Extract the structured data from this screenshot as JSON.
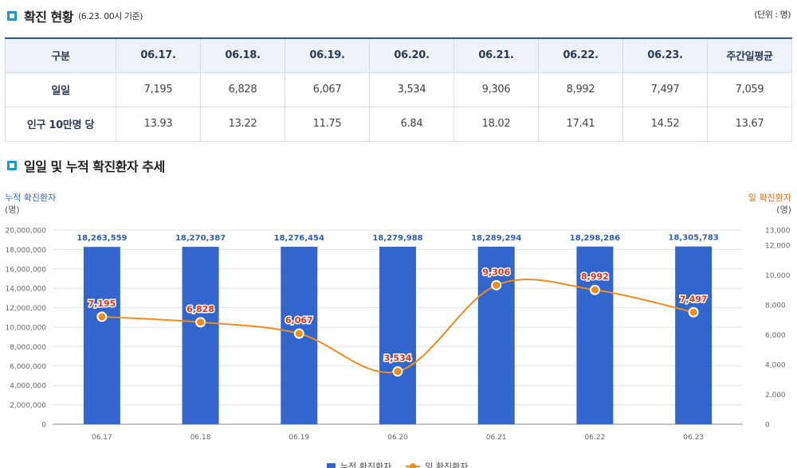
{
  "section1": {
    "title": "확진 현황",
    "subtitle": "(6.23. 00시 기준)",
    "unit": "(단위 : 명)"
  },
  "table": {
    "headers": [
      "구분",
      "06.17.",
      "06.18.",
      "06.19.",
      "06.20.",
      "06.21.",
      "06.22.",
      "06.23.",
      "주간일평균"
    ],
    "rows": [
      {
        "label": "일일",
        "values": [
          "7,195",
          "6,828",
          "6,067",
          "3,534",
          "9,306",
          "8,992",
          "7,497",
          "7,059"
        ]
      },
      {
        "label": "인구 10만명 당",
        "values": [
          "13.93",
          "13.22",
          "11.75",
          "6.84",
          "18.02",
          "17.41",
          "14.52",
          "13.67"
        ]
      }
    ]
  },
  "section2": {
    "title": "일일 및 누적 확진환자 추세"
  },
  "chart_data": {
    "type": "bar",
    "categories": [
      "06.17",
      "06.18",
      "06.19",
      "06.20",
      "06.21",
      "06.22",
      "06.23"
    ],
    "left_axis": {
      "label": "누적 확진환자",
      "unit": "(명)",
      "ylim": [
        0,
        20000000
      ],
      "ticks": [
        "0",
        "2,000,000",
        "4,000,000",
        "6,000,000",
        "8,000,000",
        "10,000,000",
        "12,000,000",
        "14,000,000",
        "16,000,000",
        "18,000,000",
        "20,000,000"
      ]
    },
    "right_axis": {
      "label": "일 확진환자",
      "unit": "(명)",
      "ylim": [
        0,
        13000
      ],
      "ticks": [
        "0",
        "2,000",
        "4,000",
        "6,000",
        "8,000",
        "10,000",
        "12,000",
        "13,000"
      ]
    },
    "series": [
      {
        "name": "누적 확진환자",
        "type": "bar",
        "axis": "left",
        "color": "#3366cc",
        "values": [
          18263559,
          18270387,
          18276454,
          18279988,
          18289294,
          18298286,
          18305783
        ],
        "labels": [
          "18,263,559",
          "18,270,387",
          "18,276,454",
          "18,279,988",
          "18,289,294",
          "18,298,286",
          "18,305,783"
        ]
      },
      {
        "name": "일 확진환자",
        "type": "line",
        "axis": "right",
        "color": "#f08c1e",
        "values": [
          7195,
          6828,
          6067,
          3534,
          9306,
          8992,
          7497
        ],
        "labels": [
          "7,195",
          "6,828",
          "6,067",
          "3,534",
          "9,306",
          "8,992",
          "7,497"
        ]
      }
    ],
    "grid": true,
    "legend": "bottom-center"
  }
}
